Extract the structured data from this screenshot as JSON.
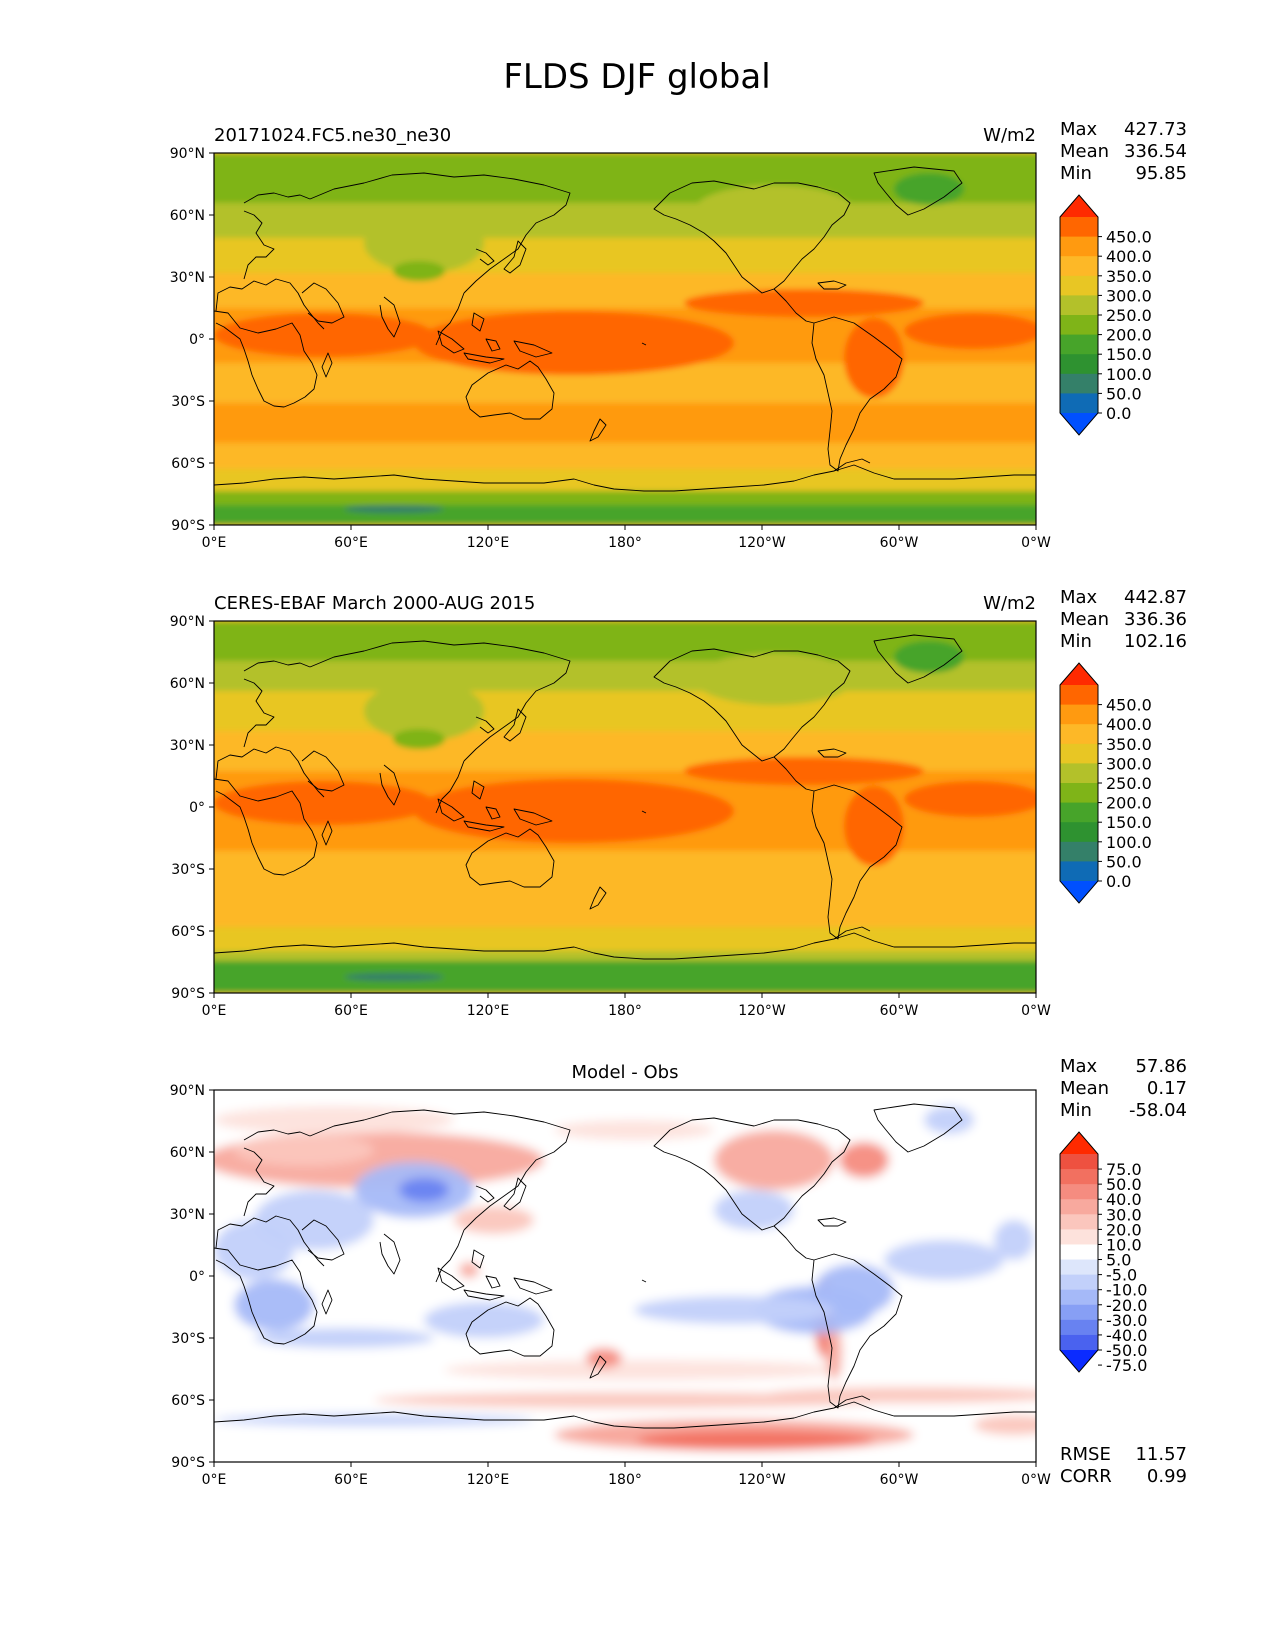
{
  "suptitle": "FLDS DJF global",
  "lat_ticks": [
    "90°N",
    "60°N",
    "30°N",
    "0°",
    "30°S",
    "60°S",
    "90°S"
  ],
  "lon_ticks": [
    "0°E",
    "60°E",
    "120°E",
    "180°",
    "120°W",
    "60°W",
    "0°W"
  ],
  "colorbar_abs": {
    "labels": [
      "450.0",
      "400.0",
      "350.0",
      "300.0",
      "250.0",
      "200.0",
      "150.0",
      "100.0",
      "50.0",
      "0.0"
    ],
    "colors": [
      "#ff2a00",
      "#ff6600",
      "#ff9a10",
      "#fdb827",
      "#e8c624",
      "#b3c12a",
      "#7fb418",
      "#47a42a",
      "#2e9230",
      "#348069",
      "#0f6bb5",
      "#0050ff"
    ]
  },
  "colorbar_diff": {
    "labels": [
      "75.0",
      "50.0",
      "40.0",
      "30.0",
      "20.0",
      "10.0",
      "5.0",
      "-5.0",
      "-10.0",
      "-20.0",
      "-30.0",
      "-40.0",
      "-50.0",
      "-75.0"
    ],
    "colors": [
      "#ff2a00",
      "#ee5140",
      "#f27060",
      "#f58c80",
      "#f8a99e",
      "#fbc6bd",
      "#fde2dc",
      "#ffffff",
      "#dde6fb",
      "#c2d0fa",
      "#a5b9f8",
      "#879ff5",
      "#6882f1",
      "#4a62ef",
      "#0b2bff"
    ]
  },
  "panels": [
    {
      "title_left": "20171024.FC5.ne30_ne30",
      "title_center": "",
      "units": "W/m2",
      "stats": [
        {
          "label": "Max",
          "value": "427.73"
        },
        {
          "label": "Mean",
          "value": "336.54"
        },
        {
          "label": "Min",
          "value": "95.85"
        }
      ],
      "colorbar": "abs"
    },
    {
      "title_left": "CERES-EBAF March 2000-AUG 2015",
      "title_center": "",
      "units": "W/m2",
      "stats": [
        {
          "label": "Max",
          "value": "442.87"
        },
        {
          "label": "Mean",
          "value": "336.36"
        },
        {
          "label": "Min",
          "value": "102.16"
        }
      ],
      "colorbar": "abs"
    },
    {
      "title_left": "",
      "title_center": "Model - Obs",
      "units": "",
      "stats": [
        {
          "label": "Max",
          "value": "57.86"
        },
        {
          "label": "Mean",
          "value": "0.17"
        },
        {
          "label": "Min",
          "value": "-58.04"
        }
      ],
      "colorbar": "diff",
      "bottom_stats": [
        {
          "label": "RMSE",
          "value": "11.57"
        },
        {
          "label": "CORR",
          "value": "0.99"
        }
      ]
    }
  ],
  "chart_data": [
    {
      "type": "heatmap",
      "title": "20171024.FC5.ne30_ne30",
      "units": "W/m2",
      "xlim": [
        0,
        360
      ],
      "ylim": [
        -90,
        90
      ],
      "x_ticks": [
        "0°E",
        "60°E",
        "120°E",
        "180°",
        "120°W",
        "60°W",
        "0°W"
      ],
      "y_ticks": [
        "90°N",
        "60°N",
        "30°N",
        "0°",
        "30°S",
        "60°S",
        "90°S"
      ],
      "levels": [
        0,
        50,
        100,
        150,
        200,
        250,
        300,
        350,
        400,
        450
      ],
      "max": 427.73,
      "mean": 336.54,
      "min": 95.85,
      "zonal_mean_approx": [
        {
          "lat": 80,
          "value": 200
        },
        {
          "lat": 60,
          "value": 260
        },
        {
          "lat": 45,
          "value": 300
        },
        {
          "lat": 30,
          "value": 340
        },
        {
          "lat": 15,
          "value": 380
        },
        {
          "lat": 0,
          "value": 410
        },
        {
          "lat": -15,
          "value": 400
        },
        {
          "lat": -30,
          "value": 370
        },
        {
          "lat": -45,
          "value": 340
        },
        {
          "lat": -60,
          "value": 300
        },
        {
          "lat": -70,
          "value": 260
        },
        {
          "lat": -85,
          "value": 140
        }
      ]
    },
    {
      "type": "heatmap",
      "title": "CERES-EBAF March 2000-AUG 2015",
      "units": "W/m2",
      "xlim": [
        0,
        360
      ],
      "ylim": [
        -90,
        90
      ],
      "x_ticks": [
        "0°E",
        "60°E",
        "120°E",
        "180°",
        "120°W",
        "60°W",
        "0°W"
      ],
      "y_ticks": [
        "90°N",
        "60°N",
        "30°N",
        "0°",
        "30°S",
        "60°S",
        "90°S"
      ],
      "levels": [
        0,
        50,
        100,
        150,
        200,
        250,
        300,
        350,
        400,
        450
      ],
      "max": 442.87,
      "mean": 336.36,
      "min": 102.16,
      "zonal_mean_approx": [
        {
          "lat": 80,
          "value": 190
        },
        {
          "lat": 60,
          "value": 250
        },
        {
          "lat": 45,
          "value": 300
        },
        {
          "lat": 30,
          "value": 345
        },
        {
          "lat": 15,
          "value": 385
        },
        {
          "lat": 0,
          "value": 410
        },
        {
          "lat": -15,
          "value": 400
        },
        {
          "lat": -30,
          "value": 370
        },
        {
          "lat": -45,
          "value": 330
        },
        {
          "lat": -60,
          "value": 290
        },
        {
          "lat": -70,
          "value": 240
        },
        {
          "lat": -85,
          "value": 150
        }
      ]
    },
    {
      "type": "heatmap",
      "title": "Model - Obs",
      "xlim": [
        0,
        360
      ],
      "ylim": [
        -90,
        90
      ],
      "x_ticks": [
        "0°E",
        "60°E",
        "120°E",
        "180°",
        "120°W",
        "60°W",
        "0°W"
      ],
      "y_ticks": [
        "90°N",
        "60°N",
        "30°N",
        "0°",
        "30°S",
        "60°S",
        "90°S"
      ],
      "levels": [
        -75,
        -50,
        -40,
        -30,
        -20,
        -10,
        -5,
        5,
        10,
        20,
        30,
        40,
        50,
        75
      ],
      "max": 57.86,
      "mean": 0.17,
      "min": -58.04,
      "rmse": 11.57,
      "corr": 0.99
    }
  ]
}
